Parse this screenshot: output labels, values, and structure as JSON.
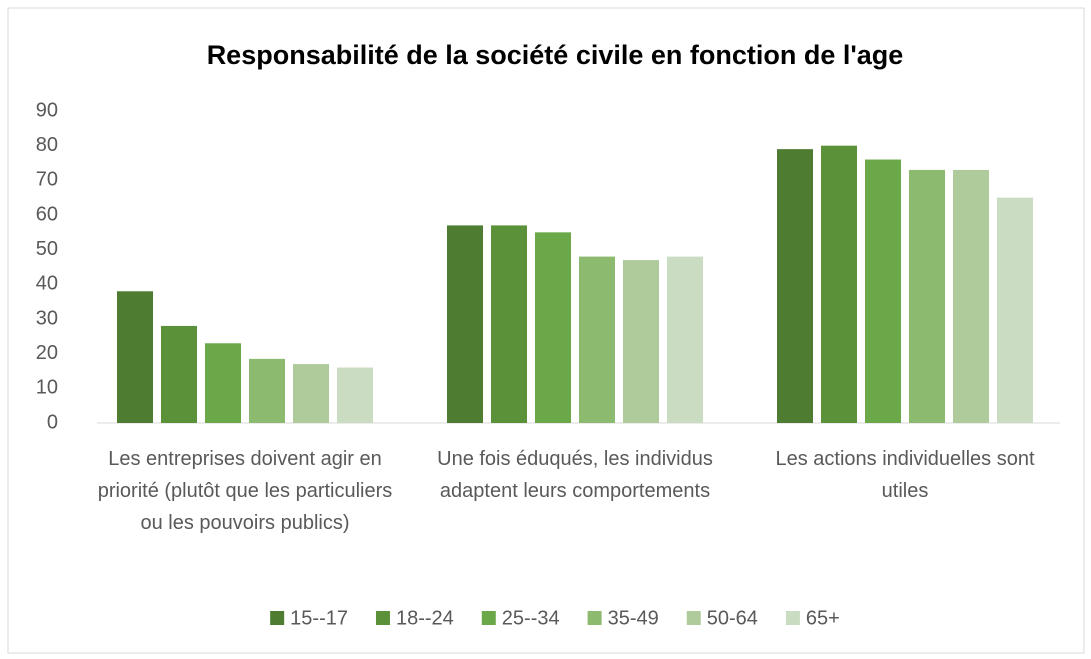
{
  "chart_data": {
    "type": "bar",
    "title": "Responsabilité de la société civile en fonction de l'age",
    "categories": [
      "Les entreprises doivent agir en priorité (plutôt que les particuliers ou les pouvoirs publics)",
      "Une fois éduqués, les individus adaptent leurs comportements",
      "Les actions individuelles sont utiles"
    ],
    "series": [
      {
        "name": "15--17",
        "color": "#4e7d32",
        "values": [
          38,
          57,
          79
        ]
      },
      {
        "name": "18--24",
        "color": "#5a9139",
        "values": [
          28,
          57,
          80
        ]
      },
      {
        "name": "25--34",
        "color": "#6aa84a",
        "values": [
          23,
          55,
          76
        ]
      },
      {
        "name": "35-49",
        "color": "#8cbb6f",
        "values": [
          18.5,
          48,
          73
        ]
      },
      {
        "name": "50-64",
        "color": "#afcb9b",
        "values": [
          17,
          47,
          73
        ]
      },
      {
        "name": "65+",
        "color": "#cadcc2",
        "values": [
          16,
          48,
          65
        ]
      }
    ],
    "ylim": [
      0,
      90
    ],
    "yticks": [
      0,
      10,
      20,
      30,
      40,
      50,
      60,
      70,
      80,
      90
    ],
    "grid": false,
    "legend": "bottom"
  }
}
